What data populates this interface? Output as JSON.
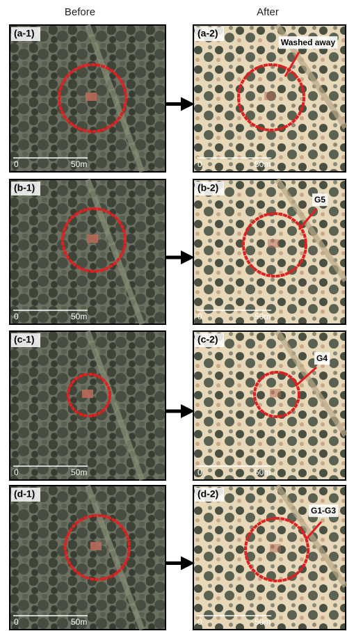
{
  "headers": {
    "before": "Before",
    "after": "After"
  },
  "rows": [
    {
      "left": {
        "label": "(a-1)",
        "scale_start": "0",
        "scale_end": "50m"
      },
      "right": {
        "label": "(a-2)",
        "annotation": "Washed away",
        "scale_start": "0",
        "scale_end": "50m"
      }
    },
    {
      "left": {
        "label": "(b-1)",
        "scale_start": "0",
        "scale_end": "50m"
      },
      "right": {
        "label": "(b-2)",
        "annotation": "G5",
        "scale_start": "0",
        "scale_end": "50m"
      }
    },
    {
      "left": {
        "label": "(c-1)",
        "scale_start": "0",
        "scale_end": "50m"
      },
      "right": {
        "label": "(c-2)",
        "annotation": "G4",
        "scale_start": "0",
        "scale_end": "50m"
      }
    },
    {
      "left": {
        "label": "(d-1)",
        "scale_start": "0",
        "scale_end": "50m"
      },
      "right": {
        "label": "(d-2)",
        "annotation": "G1-G3",
        "scale_start": "0",
        "scale_end": "50m"
      }
    }
  ]
}
